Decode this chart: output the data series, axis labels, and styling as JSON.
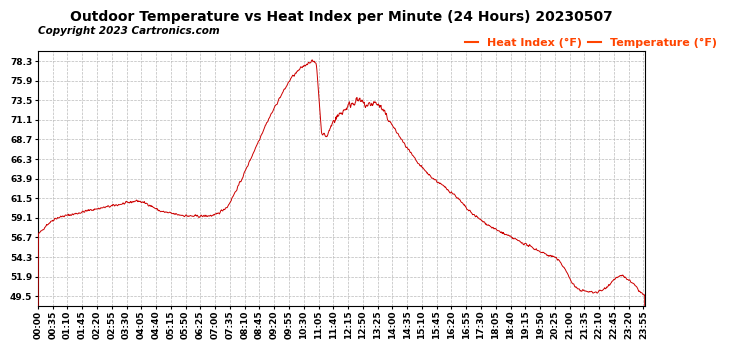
{
  "title": "Outdoor Temperature vs Heat Index per Minute (24 Hours) 20230507",
  "copyright": "Copyright 2023 Cartronics.com",
  "legend_heat": "Heat Index (°F)",
  "legend_temp": "Temperature (°F)",
  "line_color": "#cc0000",
  "legend_color": "#ff4400",
  "bg_color": "#ffffff",
  "grid_color": "#bbbbbb",
  "yticks": [
    49.5,
    51.9,
    54.3,
    56.7,
    59.1,
    61.5,
    63.9,
    66.3,
    68.7,
    71.1,
    73.5,
    75.9,
    78.3
  ],
  "ymin": 48.3,
  "ymax": 79.5,
  "title_fontsize": 10,
  "copyright_fontsize": 7.5,
  "legend_fontsize": 8,
  "tick_fontsize": 6.5,
  "xtick_interval": 35
}
